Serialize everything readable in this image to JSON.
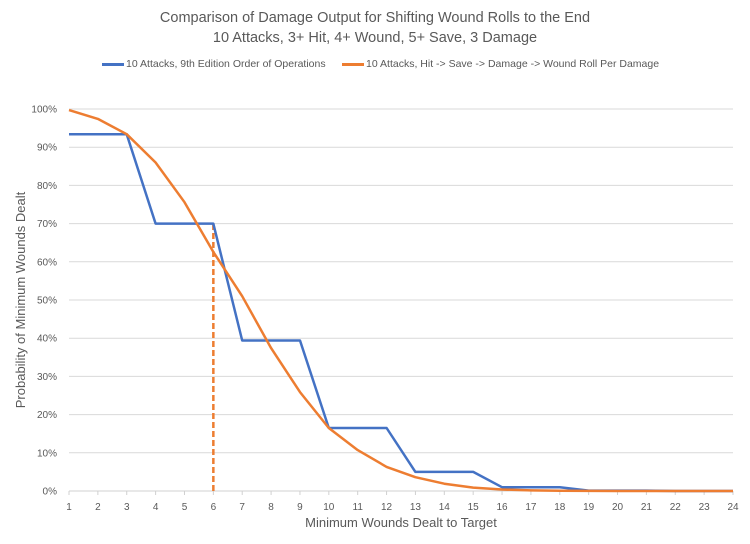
{
  "chart_data": {
    "type": "line",
    "title": "Comparison of Damage Output for Shifting Wound Rolls to the End",
    "subtitle": "10 Attacks, 3+ Hit, 4+ Wound, 5+ Save, 3 Damage",
    "xlabel": "Minimum Wounds Dealt to Target",
    "ylabel": "Probability of Minimum Wounds Dealt",
    "x": [
      1,
      2,
      3,
      4,
      5,
      6,
      7,
      8,
      9,
      10,
      11,
      12,
      13,
      14,
      15,
      16,
      17,
      18,
      19,
      20,
      21,
      22,
      23,
      24
    ],
    "x_tick_labels": [
      "1",
      "2",
      "3",
      "4",
      "5",
      "6",
      "7",
      "8",
      "9",
      "10",
      "11",
      "12",
      "13",
      "14",
      "15",
      "16",
      "17",
      "18",
      "19",
      "20",
      "21",
      "22",
      "23",
      "24"
    ],
    "ylim": [
      0,
      1
    ],
    "y_ticks": [
      0,
      0.1,
      0.2,
      0.3,
      0.4,
      0.5,
      0.6,
      0.7,
      0.8,
      0.9,
      1.0
    ],
    "y_tick_labels": [
      "0%",
      "10%",
      "20%",
      "30%",
      "40%",
      "50%",
      "60%",
      "70%",
      "80%",
      "90%",
      "100%"
    ],
    "grid": true,
    "legend_position": "top",
    "series": [
      {
        "name": "10 Attacks, 9th Edition Order of Operations",
        "color": "#4472c4",
        "values": [
          0.934,
          0.934,
          0.934,
          0.7,
          0.7,
          0.7,
          0.394,
          0.394,
          0.394,
          0.165,
          0.165,
          0.165,
          0.05,
          0.05,
          0.05,
          0.01,
          0.01,
          0.01,
          0.001,
          0.001,
          0.001,
          0.0,
          0.0,
          0.0
        ]
      },
      {
        "name": "10 Attacks, Hit -> Save -> Damage -> Wound Roll Per Damage",
        "color": "#ed7d31",
        "values": [
          0.997,
          0.974,
          0.934,
          0.86,
          0.756,
          0.626,
          0.51,
          0.374,
          0.259,
          0.165,
          0.107,
          0.063,
          0.036,
          0.019,
          0.009,
          0.004,
          0.0015,
          0.0006,
          0.0002,
          0.0001,
          0.0,
          0.0,
          0.0,
          0.0
        ]
      }
    ],
    "annotations": [
      {
        "type": "dashed-vertical-line",
        "x": 6,
        "y_from": 0,
        "y_to": 0.7,
        "color": "#ed7d31"
      }
    ]
  }
}
